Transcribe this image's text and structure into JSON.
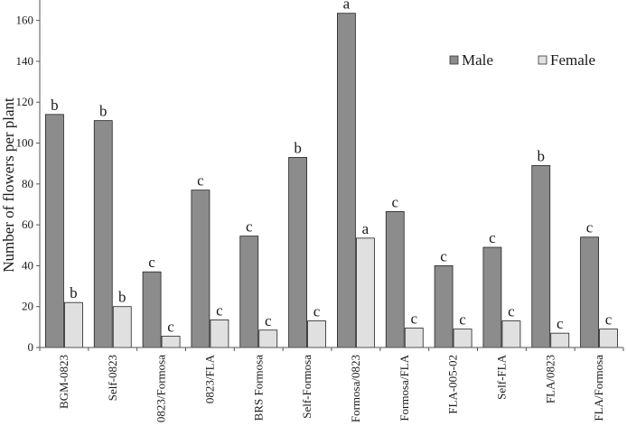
{
  "chart_data": {
    "type": "bar",
    "ylabel": "Number of flowers per plant",
    "xlabel": "",
    "ylim": [
      0,
      170
    ],
    "yticks": [
      0,
      20,
      40,
      60,
      80,
      100,
      120,
      140,
      160
    ],
    "grid": false,
    "legend_position": "top-right",
    "categories": [
      "BGM-0823",
      "Self-0823",
      "0823/Formosa",
      "0823/FLA",
      "BRS Formosa",
      "Self-Formosa",
      "Formosa/0823",
      "Formosa/FLA",
      "FLA-005-02",
      "Self-FLA",
      "FLA/0823",
      "FLA/Formosa"
    ],
    "series": [
      {
        "name": "Male",
        "color": "#8c8c8c",
        "label_color": "#000000",
        "values": [
          114,
          111,
          37,
          77,
          54.5,
          93,
          163.5,
          66.5,
          40,
          49,
          89,
          54
        ],
        "significance": [
          "b",
          "b",
          "c",
          "c",
          "c",
          "b",
          "a",
          "c",
          "c",
          "c",
          "b",
          "c"
        ]
      },
      {
        "name": "Female",
        "color": "#e0e0e0",
        "label_color": "#8a8a8a",
        "values": [
          22,
          20,
          5.5,
          13.5,
          8.5,
          13,
          53.5,
          9.5,
          9,
          13,
          7,
          9
        ],
        "significance": [
          "b",
          "b",
          "c",
          "c",
          "c",
          "c",
          "a",
          "c",
          "c",
          "c",
          "c",
          "c"
        ]
      }
    ]
  }
}
